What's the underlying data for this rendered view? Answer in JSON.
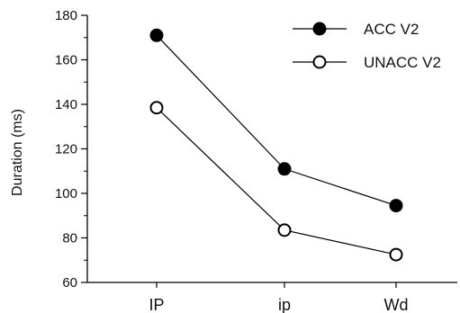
{
  "chart_data": {
    "type": "line",
    "categories": [
      "IP",
      "ip",
      "Wd"
    ],
    "ylabel": "Duration (ms)",
    "xlabel": "",
    "ylim": [
      60,
      180
    ],
    "yticks": [
      60,
      80,
      100,
      120,
      140,
      160,
      180
    ],
    "grid": false,
    "legend_position": "top-right",
    "series": [
      {
        "name": "ACC V2",
        "marker": "filled-circle",
        "color": "#000000",
        "values": [
          171,
          111,
          94.5
        ]
      },
      {
        "name": "UNACC V2",
        "marker": "open-circle",
        "color": "#000000",
        "values": [
          138.5,
          83.5,
          72.5
        ]
      }
    ]
  }
}
